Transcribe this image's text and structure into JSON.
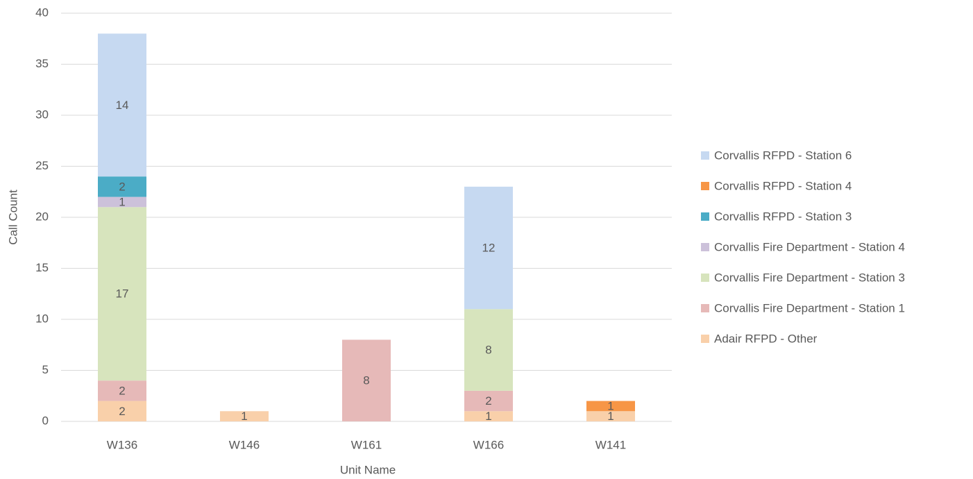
{
  "chart_data": {
    "type": "stacked_bar",
    "x_label": "Unit Name",
    "y_label": "Call Count",
    "categories": [
      "W136",
      "W146",
      "W161",
      "W166",
      "W141"
    ],
    "series": [
      {
        "name": "Adair RFPD - Other",
        "color": "#f9d0aa",
        "values": [
          2,
          1,
          null,
          1,
          1
        ]
      },
      {
        "name": "Corvallis Fire Department - Station 1",
        "color": "#e6b9b8",
        "values": [
          2,
          null,
          8,
          2,
          null
        ]
      },
      {
        "name": "Corvallis Fire Department - Station 3",
        "color": "#d7e4bd",
        "values": [
          17,
          null,
          null,
          8,
          null
        ]
      },
      {
        "name": "Corvallis Fire Department - Station 4",
        "color": "#ccc1da",
        "values": [
          1,
          null,
          null,
          null,
          null
        ]
      },
      {
        "name": "Corvallis RFPD - Station 3",
        "color": "#4bacc6",
        "values": [
          2,
          null,
          null,
          null,
          null
        ]
      },
      {
        "name": "Corvallis RFPD - Station 4",
        "color": "#f79646",
        "values": [
          null,
          null,
          null,
          null,
          1
        ]
      },
      {
        "name": "Corvallis RFPD - Station 6",
        "color": "#c6d9f1",
        "values": [
          14,
          null,
          null,
          12,
          null
        ]
      }
    ],
    "ylim": [
      0,
      40
    ],
    "yticks": [
      0,
      5,
      10,
      15,
      20,
      25,
      30,
      35,
      40
    ],
    "grid": true,
    "legend": "right"
  }
}
